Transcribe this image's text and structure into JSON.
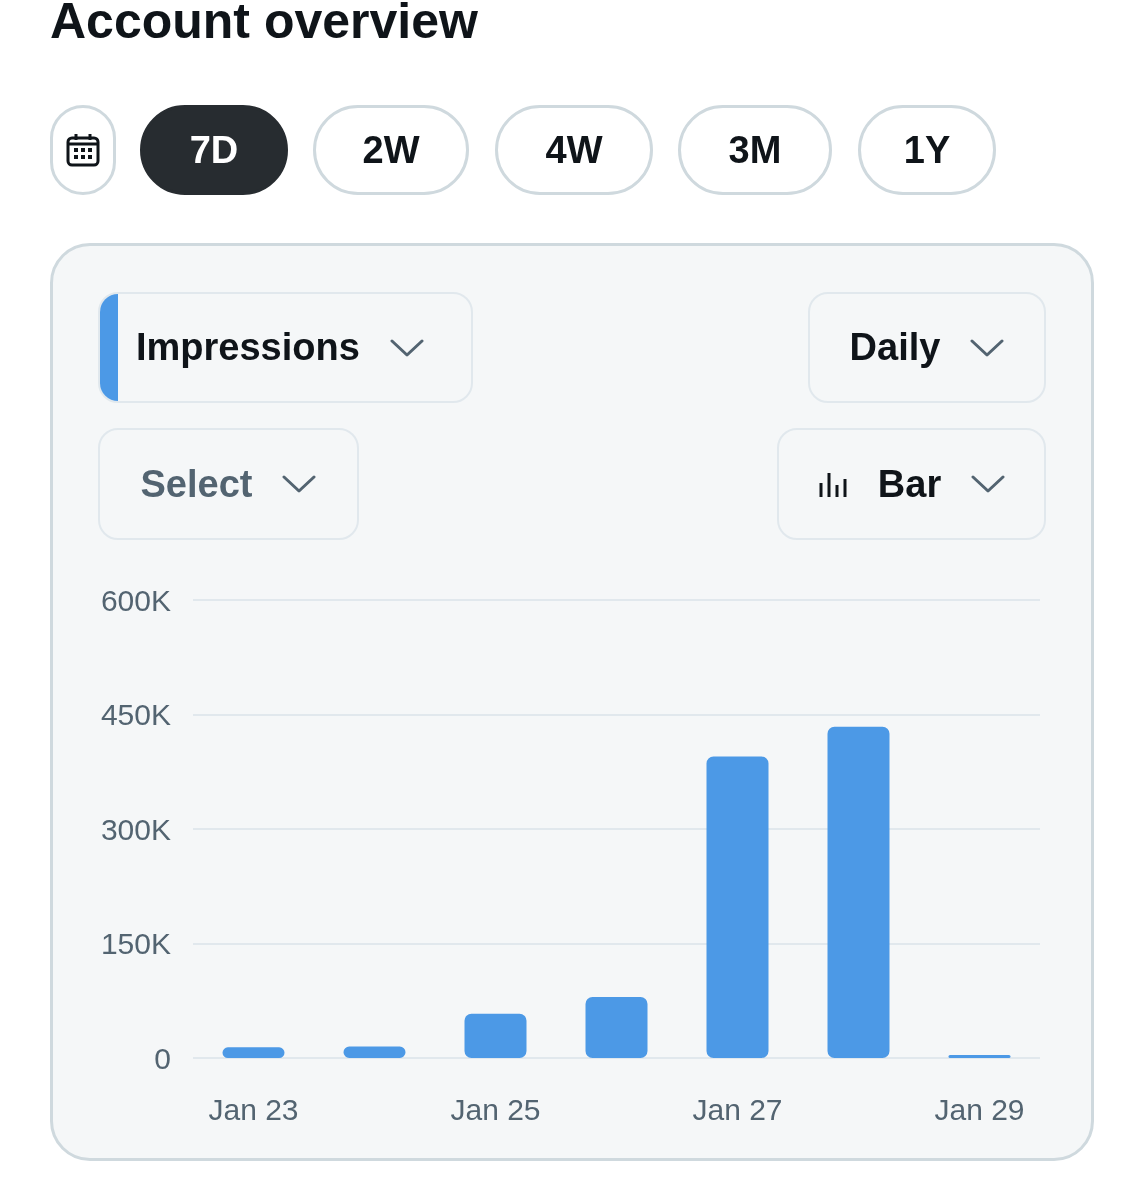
{
  "chart_data": {
    "type": "bar",
    "title": "Account overview",
    "categories": [
      "Jan 23",
      null,
      "Jan 25",
      null,
      "Jan 27",
      null,
      "Jan 29"
    ],
    "series": [
      {
        "name": "Impressions",
        "color": "#4c99e6",
        "values": [
          14000,
          15000,
          58000,
          80000,
          395000,
          434000,
          4000
        ]
      }
    ],
    "ylim": [
      0,
      600000
    ],
    "yticks": [
      {
        "value": 0,
        "label": "0"
      },
      {
        "value": 150000,
        "label": "150K"
      },
      {
        "value": 300000,
        "label": "300K"
      },
      {
        "value": 450000,
        "label": "450K"
      },
      {
        "value": 600000,
        "label": "600K"
      }
    ],
    "grid": "y",
    "legend": "top left",
    "annotations": [
      "7D",
      "2W",
      "4W",
      "3M",
      "1Y",
      "Daily",
      "Select",
      "Bar"
    ]
  }
}
